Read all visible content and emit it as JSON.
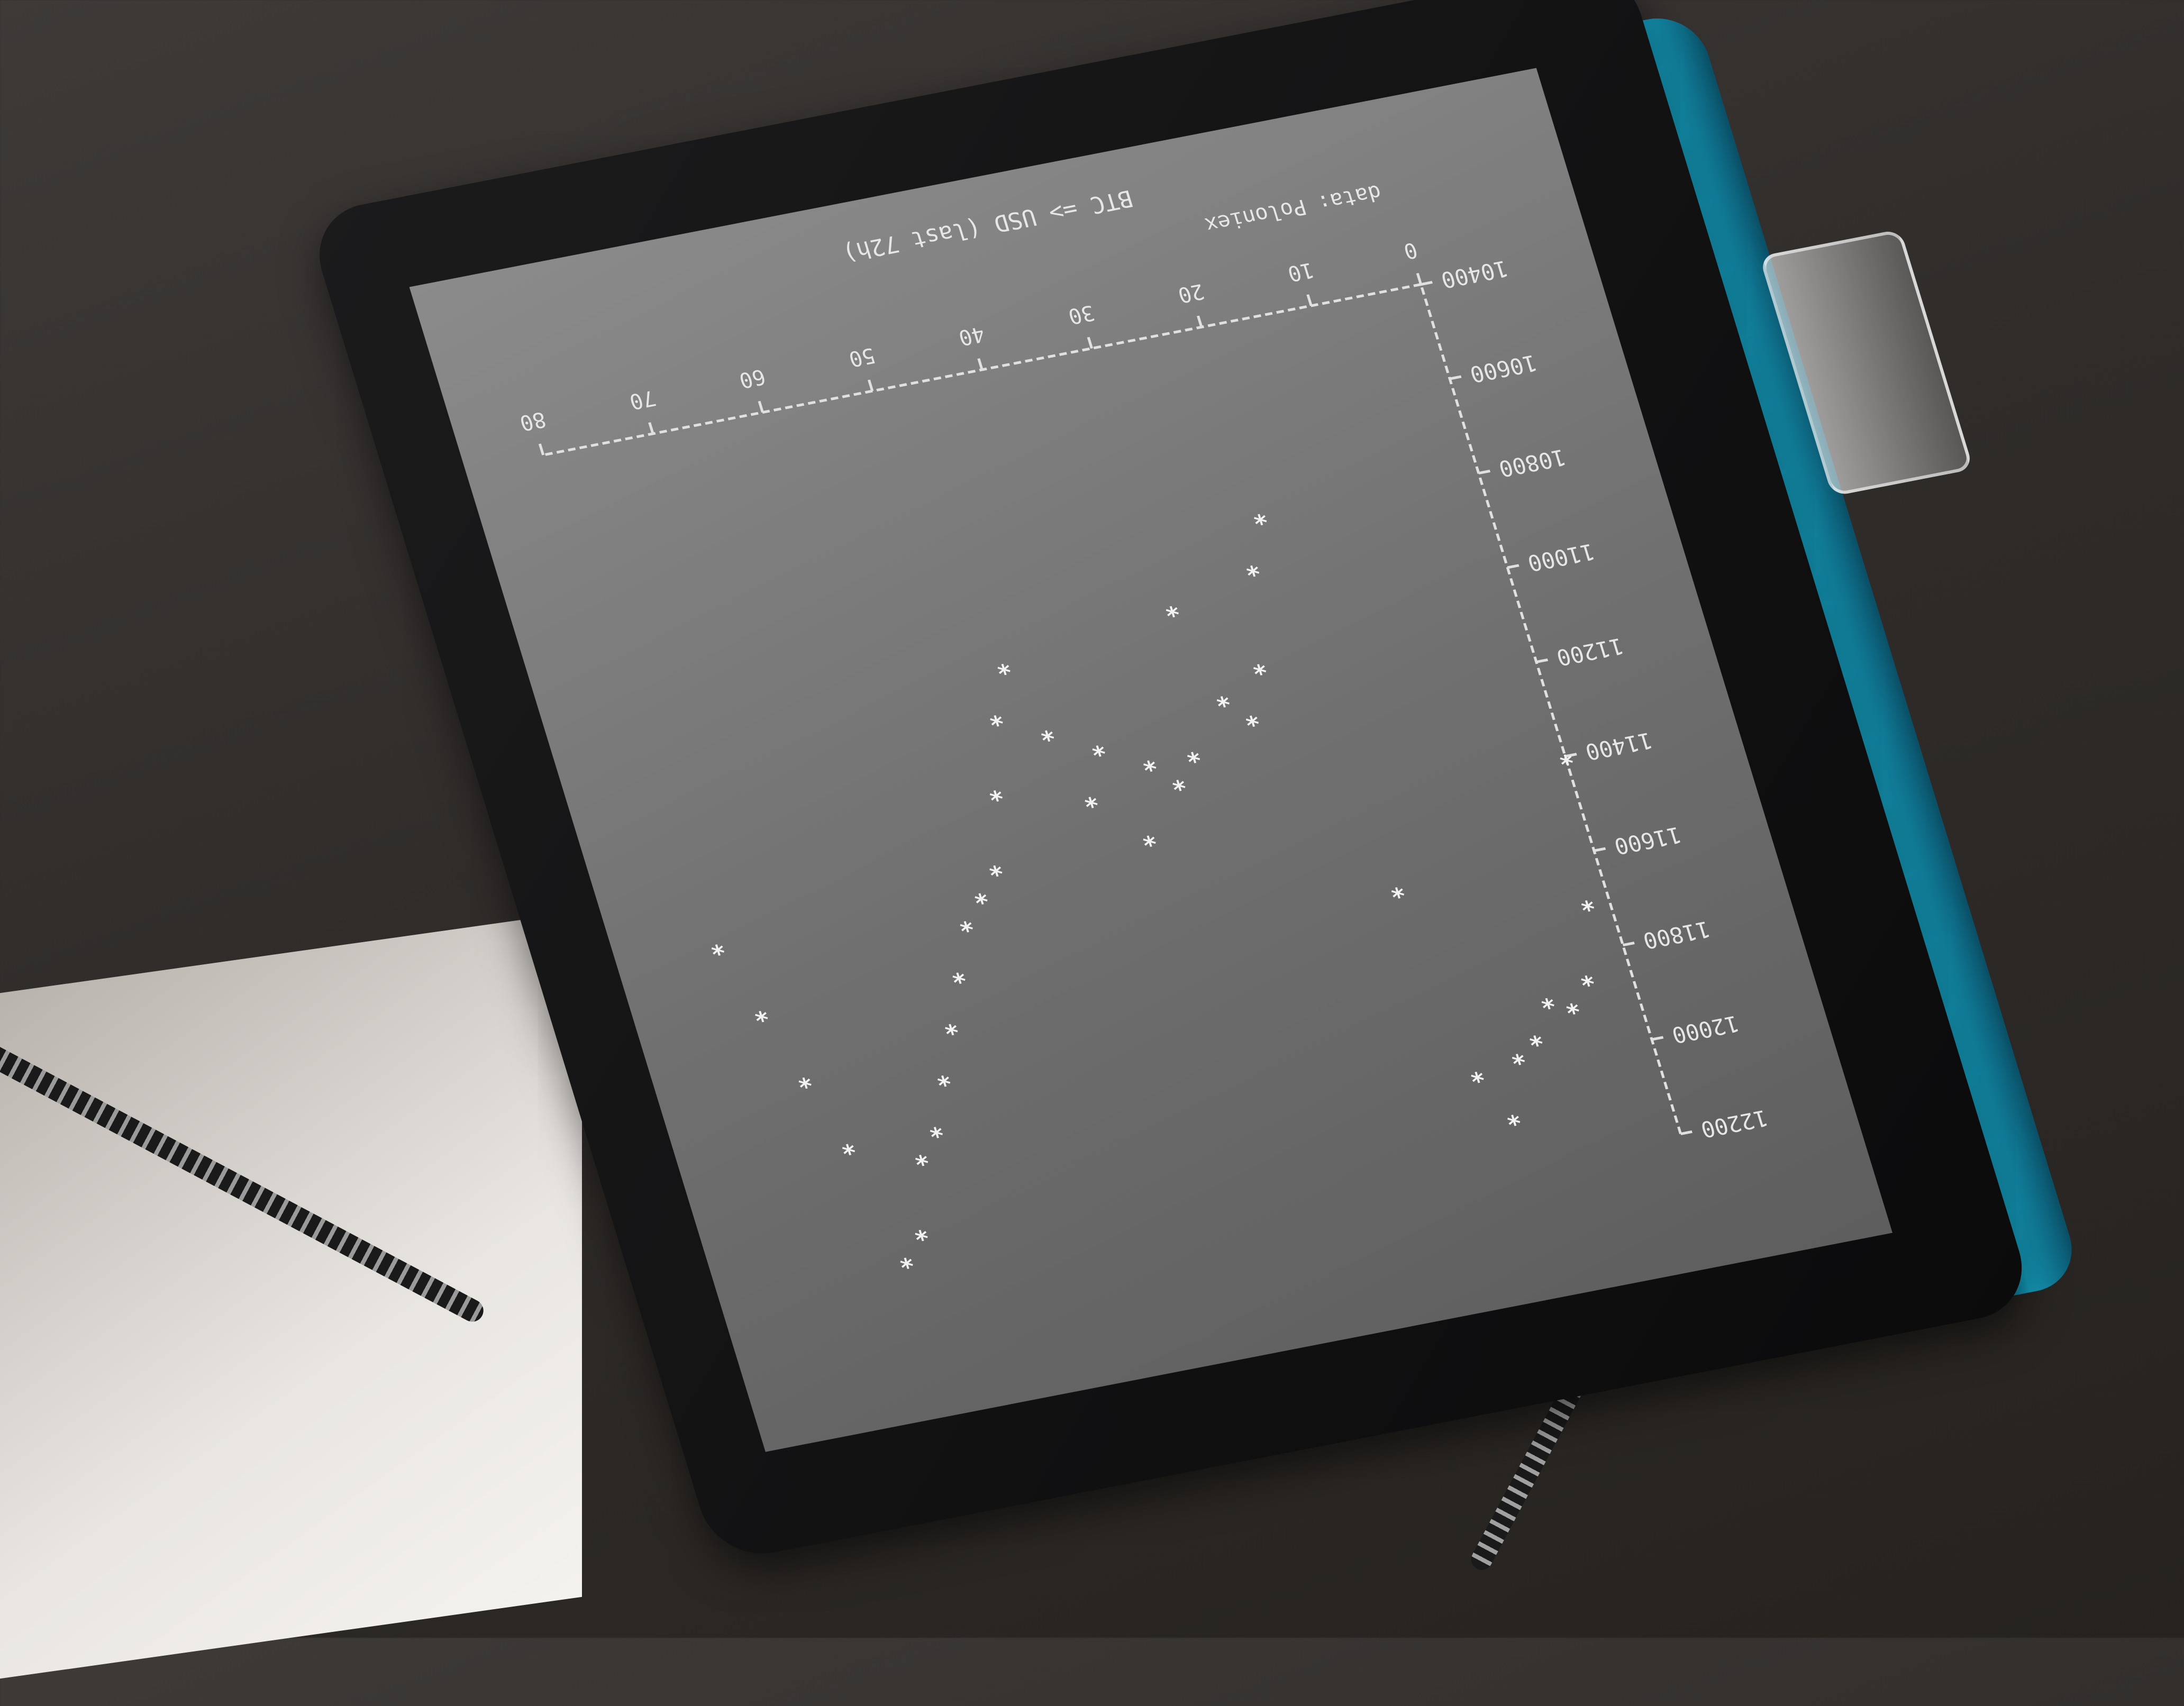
{
  "chart_data": {
    "type": "line",
    "title": "BTC => USD (last 72h)",
    "source_label": "data: Poloniex",
    "x_ticks": [
      "0",
      "10",
      "20",
      "30",
      "40",
      "50",
      "60",
      "70",
      "80"
    ],
    "y_ticks": [
      "10400",
      "10600",
      "10800",
      "11000",
      "11200",
      "11400",
      "11600",
      "11800",
      "12000",
      "12200"
    ],
    "ylim": [
      10400,
      12200
    ],
    "xlim": [
      0,
      80
    ],
    "marker": "*",
    "series": [
      {
        "x": [
          0,
          2,
          4,
          6,
          8,
          10,
          12,
          14,
          16,
          18,
          20,
          22,
          24,
          26,
          28,
          30,
          32,
          34,
          36,
          38,
          40,
          42,
          44,
          46,
          48,
          50,
          52,
          54,
          56,
          58,
          60,
          62,
          64,
          66,
          68,
          70,
          72,
          74,
          76,
          78
        ],
        "values": [
          11400,
          11700,
          11850,
          11900,
          11880,
          11950,
          11980,
          12100,
          12000,
          11600,
          10800,
          10900,
          11100,
          11200,
          11150,
          10950,
          11250,
          11300,
          11250,
          11400,
          11200,
          11300,
          11150,
          11000,
          11100,
          11250,
          11400,
          11450,
          11500,
          11600,
          11700,
          11800,
          11900,
          11950,
          12100,
          12150,
          11900,
          11750,
          11600,
          11450
        ]
      }
    ]
  }
}
